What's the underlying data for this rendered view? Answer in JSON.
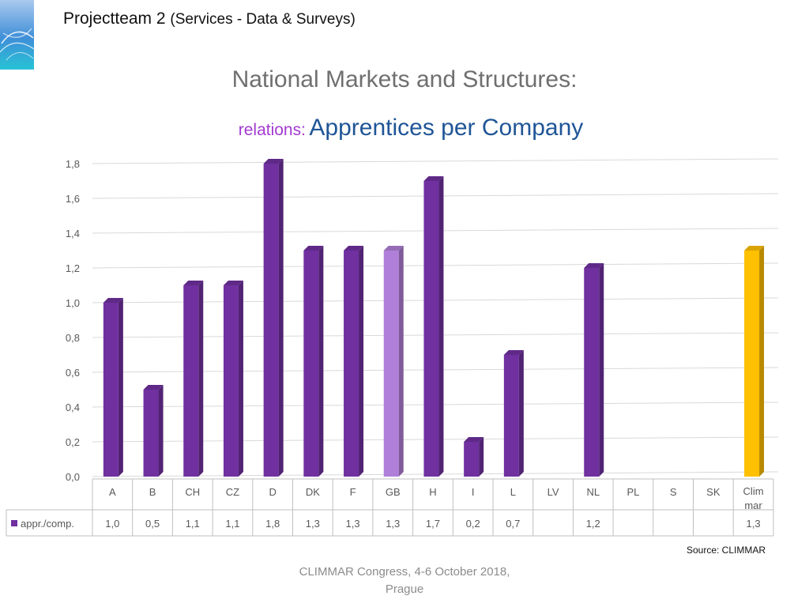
{
  "header": {
    "team": "Projectteam 2",
    "sub": "(Services - Data & Surveys)"
  },
  "slide": {
    "title": "National Markets and Structures:",
    "subtitle_prefix": "relations:",
    "subtitle_main": "Apprentices per Company"
  },
  "source": "Source: CLIMMAR",
  "footer": {
    "line1": "CLIMMAR Congress, 4-6 October 2018,",
    "line2": "Prague"
  },
  "colors": {
    "bar": "#7030a0",
    "bar_highlight": "#b07fd9",
    "bar_climmar": "#ffc000"
  },
  "chart_data": {
    "type": "bar",
    "categories": [
      "A",
      "B",
      "CH",
      "CZ",
      "D",
      "DK",
      "F",
      "GB",
      "H",
      "I",
      "L",
      "LV",
      "NL",
      "PL",
      "S",
      "SK",
      "Clim mar"
    ],
    "category_lines": [
      [
        "A"
      ],
      [
        "B"
      ],
      [
        "CH"
      ],
      [
        "CZ"
      ],
      [
        "D"
      ],
      [
        "DK"
      ],
      [
        "F"
      ],
      [
        "GB"
      ],
      [
        "H"
      ],
      [
        "I"
      ],
      [
        "L"
      ],
      [
        "LV"
      ],
      [
        "NL"
      ],
      [
        "PL"
      ],
      [
        "S"
      ],
      [
        "SK"
      ],
      [
        "Clim",
        "mar"
      ]
    ],
    "series": [
      {
        "name": "appr./comp.",
        "values": [
          1.0,
          0.5,
          1.1,
          1.1,
          1.8,
          1.3,
          1.3,
          1.3,
          1.7,
          0.2,
          0.7,
          null,
          1.2,
          null,
          null,
          null,
          1.3
        ],
        "labels": [
          "1,0",
          "0,5",
          "1,1",
          "1,1",
          "1,8",
          "1,3",
          "1,3",
          "1,3",
          "1,7",
          "0,2",
          "0,7",
          "",
          "1,2",
          "",
          "",
          "",
          "1,3"
        ]
      }
    ],
    "yticks": [
      "0,0",
      "0,2",
      "0,4",
      "0,6",
      "0,8",
      "1,0",
      "1,2",
      "1,4",
      "1,6",
      "1,8"
    ],
    "ylim": [
      0,
      1.8
    ],
    "highlight": {
      "GB": "bar_highlight",
      "Clim mar": "bar_climmar"
    },
    "grid": true,
    "legend": "data-table"
  }
}
